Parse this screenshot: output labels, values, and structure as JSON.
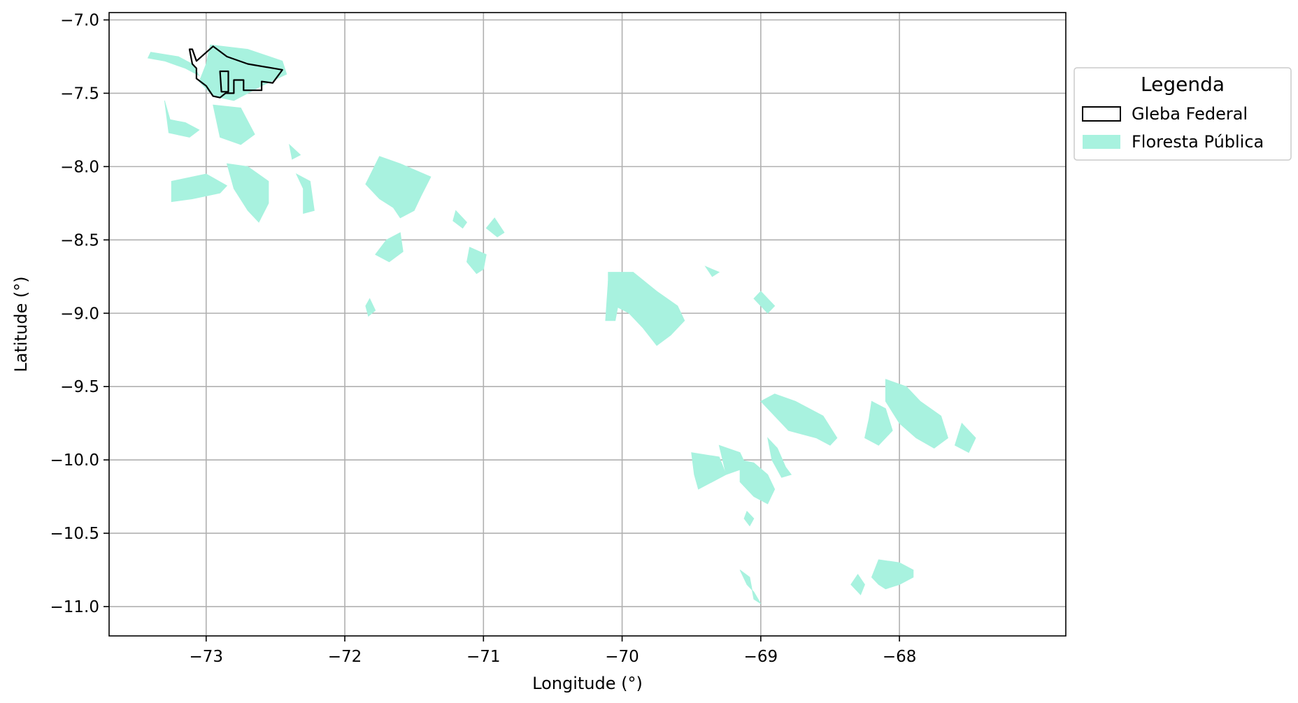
{
  "chart_data": {
    "type": "map",
    "xlabel": "Longitude (°)",
    "ylabel": "Latitude (°)",
    "xlim": [
      -73.7,
      -66.8
    ],
    "ylim": [
      -11.2,
      -6.95
    ],
    "xticks": [
      -73,
      -72,
      -71,
      -70,
      -69,
      -68
    ],
    "yticks": [
      -7.0,
      -7.5,
      -8.0,
      -8.5,
      -9.0,
      -9.5,
      -10.0,
      -10.5,
      -11.0
    ],
    "xtick_labels": [
      "−73",
      "−72",
      "−71",
      "−70",
      "−69",
      "−68"
    ],
    "ytick_labels": [
      "−7.0",
      "−7.5",
      "−8.0",
      "−8.5",
      "−9.0",
      "−9.5",
      "−10.0",
      "−10.5",
      "−11.0"
    ],
    "grid": true,
    "legend": {
      "title": "Legenda",
      "placement": "outside-right-top",
      "entries": [
        {
          "label": "Gleba Federal",
          "style": "outline",
          "color": "#000000"
        },
        {
          "label": "Floresta Pública",
          "style": "fill",
          "color": "#a8f2df"
        }
      ]
    },
    "series": [
      {
        "name": "Gleba Federal",
        "color": "#000000",
        "polygons": [
          [
            [
              -73.1,
              -7.2
            ],
            [
              -73.07,
              -7.28
            ],
            [
              -72.95,
              -7.18
            ],
            [
              -72.85,
              -7.25
            ],
            [
              -72.7,
              -7.3
            ],
            [
              -72.45,
              -7.34
            ],
            [
              -72.52,
              -7.43
            ],
            [
              -72.6,
              -7.42
            ],
            [
              -72.6,
              -7.48
            ],
            [
              -72.73,
              -7.48
            ],
            [
              -72.73,
              -7.41
            ],
            [
              -72.8,
              -7.41
            ],
            [
              -72.8,
              -7.5
            ],
            [
              -72.86,
              -7.5
            ],
            [
              -72.9,
              -7.53
            ],
            [
              -72.95,
              -7.52
            ],
            [
              -73.0,
              -7.45
            ],
            [
              -73.07,
              -7.4
            ],
            [
              -73.07,
              -7.33
            ],
            [
              -73.1,
              -7.3
            ],
            [
              -73.12,
              -7.2
            ]
          ],
          [
            [
              -72.9,
              -7.35
            ],
            [
              -72.84,
              -7.35
            ],
            [
              -72.84,
              -7.49
            ],
            [
              -72.89,
              -7.49
            ]
          ]
        ]
      },
      {
        "name": "Floresta Pública",
        "color": "#a8f2df",
        "polygons": [
          [
            [
              -73.4,
              -7.22
            ],
            [
              -73.2,
              -7.25
            ],
            [
              -73.1,
              -7.3
            ],
            [
              -73.05,
              -7.38
            ],
            [
              -73.15,
              -7.33
            ],
            [
              -73.3,
              -7.28
            ],
            [
              -73.42,
              -7.26
            ]
          ],
          [
            [
              -72.97,
              -7.17
            ],
            [
              -72.7,
              -7.2
            ],
            [
              -72.45,
              -7.28
            ],
            [
              -72.42,
              -7.37
            ],
            [
              -72.6,
              -7.45
            ],
            [
              -72.8,
              -7.55
            ],
            [
              -72.95,
              -7.52
            ],
            [
              -73.05,
              -7.42
            ],
            [
              -73.0,
              -7.3
            ]
          ],
          [
            [
              -73.3,
              -7.55
            ],
            [
              -73.26,
              -7.68
            ],
            [
              -73.15,
              -7.7
            ],
            [
              -73.05,
              -7.75
            ],
            [
              -73.12,
              -7.8
            ],
            [
              -73.27,
              -7.77
            ]
          ],
          [
            [
              -72.95,
              -7.58
            ],
            [
              -72.75,
              -7.6
            ],
            [
              -72.65,
              -7.78
            ],
            [
              -72.75,
              -7.85
            ],
            [
              -72.9,
              -7.8
            ]
          ],
          [
            [
              -73.25,
              -8.1
            ],
            [
              -73.0,
              -8.05
            ],
            [
              -72.85,
              -8.13
            ],
            [
              -72.9,
              -8.18
            ],
            [
              -73.1,
              -8.22
            ],
            [
              -73.25,
              -8.24
            ]
          ],
          [
            [
              -72.85,
              -7.98
            ],
            [
              -72.7,
              -8.0
            ],
            [
              -72.55,
              -8.1
            ],
            [
              -72.55,
              -8.25
            ],
            [
              -72.62,
              -8.38
            ],
            [
              -72.7,
              -8.3
            ],
            [
              -72.8,
              -8.15
            ]
          ],
          [
            [
              -72.35,
              -8.05
            ],
            [
              -72.25,
              -8.1
            ],
            [
              -72.22,
              -8.3
            ],
            [
              -72.3,
              -8.32
            ],
            [
              -72.3,
              -8.15
            ]
          ],
          [
            [
              -72.4,
              -7.85
            ],
            [
              -72.38,
              -7.95
            ],
            [
              -72.32,
              -7.92
            ]
          ],
          [
            [
              -71.75,
              -7.93
            ],
            [
              -71.6,
              -7.98
            ],
            [
              -71.38,
              -8.07
            ],
            [
              -71.45,
              -8.2
            ],
            [
              -71.5,
              -8.3
            ],
            [
              -71.6,
              -8.35
            ],
            [
              -71.65,
              -8.28
            ],
            [
              -71.75,
              -8.22
            ],
            [
              -71.85,
              -8.12
            ]
          ],
          [
            [
              -71.6,
              -8.45
            ],
            [
              -71.7,
              -8.5
            ],
            [
              -71.78,
              -8.6
            ],
            [
              -71.68,
              -8.65
            ],
            [
              -71.58,
              -8.58
            ]
          ],
          [
            [
              -71.1,
              -8.55
            ],
            [
              -70.98,
              -8.6
            ],
            [
              -71.0,
              -8.7
            ],
            [
              -71.05,
              -8.73
            ],
            [
              -71.12,
              -8.65
            ]
          ],
          [
            [
              -71.2,
              -8.3
            ],
            [
              -71.12,
              -8.38
            ],
            [
              -71.15,
              -8.42
            ],
            [
              -71.22,
              -8.37
            ]
          ],
          [
            [
              -70.92,
              -8.35
            ],
            [
              -70.85,
              -8.45
            ],
            [
              -70.9,
              -8.48
            ],
            [
              -70.98,
              -8.42
            ]
          ],
          [
            [
              -71.82,
              -8.9
            ],
            [
              -71.78,
              -8.98
            ],
            [
              -71.83,
              -9.02
            ],
            [
              -71.85,
              -8.95
            ]
          ],
          [
            [
              -70.1,
              -8.72
            ],
            [
              -69.92,
              -8.72
            ],
            [
              -69.75,
              -8.85
            ],
            [
              -69.6,
              -8.95
            ],
            [
              -69.55,
              -9.05
            ],
            [
              -69.65,
              -9.15
            ],
            [
              -69.75,
              -9.22
            ],
            [
              -69.85,
              -9.1
            ],
            [
              -69.95,
              -9.0
            ],
            [
              -70.05,
              -8.95
            ],
            [
              -70.1,
              -9.05
            ]
          ],
          [
            [
              -70.1,
              -8.78
            ],
            [
              -70.0,
              -8.8
            ],
            [
              -70.05,
              -9.05
            ],
            [
              -70.12,
              -9.05
            ]
          ],
          [
            [
              -69.4,
              -8.68
            ],
            [
              -69.3,
              -8.72
            ],
            [
              -69.35,
              -8.75
            ]
          ],
          [
            [
              -69.0,
              -8.85
            ],
            [
              -68.9,
              -8.95
            ],
            [
              -68.95,
              -9.0
            ],
            [
              -69.05,
              -8.9
            ]
          ],
          [
            [
              -69.0,
              -9.6
            ],
            [
              -68.9,
              -9.7
            ],
            [
              -68.8,
              -9.8
            ],
            [
              -68.6,
              -9.85
            ],
            [
              -68.5,
              -9.9
            ],
            [
              -68.45,
              -9.85
            ],
            [
              -68.55,
              -9.7
            ],
            [
              -68.75,
              -9.6
            ],
            [
              -68.9,
              -9.55
            ]
          ],
          [
            [
              -69.5,
              -9.95
            ],
            [
              -69.3,
              -9.98
            ],
            [
              -69.25,
              -10.1
            ],
            [
              -69.35,
              -10.15
            ],
            [
              -69.45,
              -10.2
            ],
            [
              -69.48,
              -10.1
            ]
          ],
          [
            [
              -69.3,
              -9.9
            ],
            [
              -69.15,
              -9.95
            ],
            [
              -69.1,
              -10.05
            ],
            [
              -69.25,
              -10.1
            ]
          ],
          [
            [
              -69.15,
              -10.0
            ],
            [
              -69.05,
              -10.02
            ],
            [
              -68.95,
              -10.1
            ],
            [
              -68.9,
              -10.2
            ],
            [
              -68.95,
              -10.3
            ],
            [
              -69.05,
              -10.25
            ],
            [
              -69.15,
              -10.15
            ]
          ],
          [
            [
              -68.95,
              -9.85
            ],
            [
              -68.88,
              -9.92
            ],
            [
              -68.82,
              -10.05
            ],
            [
              -68.78,
              -10.1
            ],
            [
              -68.85,
              -10.12
            ],
            [
              -68.92,
              -10.0
            ]
          ],
          [
            [
              -68.1,
              -9.45
            ],
            [
              -67.95,
              -9.5
            ],
            [
              -67.85,
              -9.6
            ],
            [
              -67.7,
              -9.7
            ],
            [
              -67.65,
              -9.85
            ],
            [
              -67.75,
              -9.92
            ],
            [
              -67.88,
              -9.85
            ],
            [
              -68.0,
              -9.75
            ],
            [
              -68.1,
              -9.6
            ]
          ],
          [
            [
              -68.2,
              -9.6
            ],
            [
              -68.1,
              -9.65
            ],
            [
              -68.05,
              -9.8
            ],
            [
              -68.15,
              -9.9
            ],
            [
              -68.25,
              -9.85
            ],
            [
              -68.22,
              -9.72
            ]
          ],
          [
            [
              -67.55,
              -9.75
            ],
            [
              -67.45,
              -9.85
            ],
            [
              -67.5,
              -9.95
            ],
            [
              -67.6,
              -9.9
            ]
          ],
          [
            [
              -69.15,
              -10.75
            ],
            [
              -69.08,
              -10.8
            ],
            [
              -69.05,
              -10.95
            ],
            [
              -69.0,
              -10.98
            ],
            [
              -69.05,
              -10.9
            ],
            [
              -69.1,
              -10.85
            ]
          ],
          [
            [
              -68.15,
              -10.68
            ],
            [
              -68.0,
              -10.7
            ],
            [
              -67.9,
              -10.75
            ],
            [
              -67.9,
              -10.8
            ],
            [
              -68.0,
              -10.85
            ],
            [
              -68.1,
              -10.88
            ],
            [
              -68.15,
              -10.85
            ],
            [
              -68.2,
              -10.8
            ]
          ],
          [
            [
              -68.3,
              -10.78
            ],
            [
              -68.25,
              -10.85
            ],
            [
              -68.28,
              -10.92
            ],
            [
              -68.35,
              -10.85
            ]
          ],
          [
            [
              -69.1,
              -10.35
            ],
            [
              -69.05,
              -10.4
            ],
            [
              -69.08,
              -10.45
            ],
            [
              -69.12,
              -10.4
            ]
          ]
        ]
      }
    ]
  }
}
